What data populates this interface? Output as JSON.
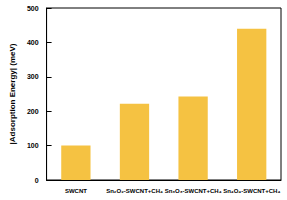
{
  "chart_data": {
    "type": "bar",
    "y_label": "|Adsorption Energy| (meV)",
    "categories": [
      "SWCNT",
      "Sn₂O₂-SWCNT+CH₄",
      "Sn₃O₃-SWCNT+CH₄",
      "Sn₄O₄-SWCNT+CH₄"
    ],
    "values": [
      100,
      222,
      243,
      440
    ],
    "color": "#f5c242",
    "ylim": [
      0,
      500
    ],
    "yticks": [
      0,
      100,
      200,
      300,
      400,
      500
    ],
    "grid": false
  }
}
